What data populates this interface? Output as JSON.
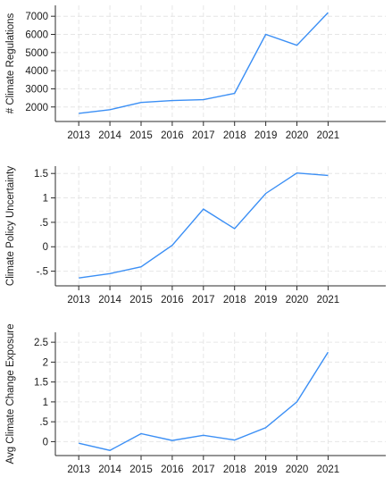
{
  "chart_data": [
    {
      "type": "line",
      "x": [
        2013,
        2014,
        2015,
        2016,
        2017,
        2018,
        2019,
        2020,
        2021
      ],
      "values": [
        1650,
        1850,
        2250,
        2350,
        2400,
        2750,
        6000,
        5400,
        7200
      ],
      "xlabel": "",
      "ylabel": "# Climate Regulations",
      "yticks": [
        2000,
        3000,
        4000,
        5000,
        6000,
        7000
      ],
      "ytick_labels": [
        "2000",
        "3000",
        "4000",
        "5000",
        "6000",
        "7000"
      ],
      "ylim": [
        1200,
        7600
      ],
      "grid": true
    },
    {
      "type": "line",
      "x": [
        2013,
        2014,
        2015,
        2016,
        2017,
        2018,
        2019,
        2020,
        2021
      ],
      "values": [
        -0.64,
        -0.55,
        -0.41,
        0.03,
        0.77,
        0.37,
        1.09,
        1.51,
        1.46
      ],
      "xlabel": "",
      "ylabel": "Climate Policy Uncertainty",
      "yticks": [
        -0.5,
        0,
        0.5,
        1,
        1.5
      ],
      "ytick_labels": [
        "-.5",
        "0",
        ".5",
        "1",
        "1.5"
      ],
      "ylim": [
        -0.8,
        1.65
      ],
      "grid": true
    },
    {
      "type": "line",
      "x": [
        2013,
        2014,
        2015,
        2016,
        2017,
        2018,
        2019,
        2020,
        2021
      ],
      "values": [
        -0.04,
        -0.22,
        0.2,
        0.03,
        0.16,
        0.04,
        0.35,
        1.0,
        2.25
      ],
      "xlabel": "",
      "ylabel": "Avg Climate Change Exposure",
      "yticks": [
        0,
        0.5,
        1,
        1.5,
        2,
        2.5
      ],
      "ytick_labels": [
        "0",
        ".5",
        "1",
        "1.5",
        "2",
        "2.5"
      ],
      "ylim": [
        -0.35,
        2.75
      ],
      "grid": true
    }
  ],
  "style": {
    "line_color": "#3b8ff5",
    "axis_color": "#2b2b2b",
    "grid_color": "#e6e6e6"
  }
}
